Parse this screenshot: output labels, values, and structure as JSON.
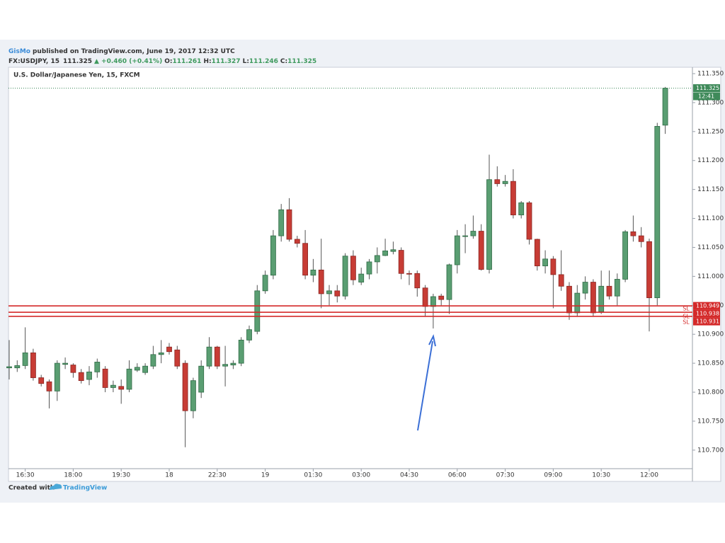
{
  "chart_data": {
    "type": "candlestick",
    "publisher": "GisMo",
    "published": "published on TradingView.com, June 19, 2017 12:32 UTC",
    "symbol": "FX:USDJPY, 15",
    "change": "▲ +0.460 (+0.41%)",
    "ohlc_labels": [
      "O:",
      "H:",
      "L:",
      "C:"
    ],
    "title": "U.S. Dollar/Japanese Yen, 15, FXCM",
    "footer": "Created with",
    "brand": "TradingView",
    "countdown": "12:41",
    "up_color": "#5a9e72",
    "down_color": "#c73c35",
    "categories": [
      null,
      null,
      "16:30",
      null,
      null,
      null,
      null,
      null,
      "18:00",
      null,
      null,
      null,
      null,
      null,
      "19:30",
      null,
      null,
      null,
      null,
      null,
      "18",
      null,
      null,
      null,
      null,
      null,
      "22:30",
      null,
      null,
      null,
      null,
      null,
      "19",
      null,
      null,
      null,
      null,
      null,
      "01:30",
      null,
      null,
      null,
      null,
      null,
      "03:00",
      null,
      null,
      null,
      null,
      null,
      "04:30",
      null,
      null,
      null,
      null,
      null,
      "06:00",
      null,
      null,
      null,
      null,
      null,
      "07:30",
      null,
      null,
      null,
      null,
      null,
      "09:00",
      null,
      null,
      null,
      null,
      null,
      "10:30",
      null,
      null,
      null,
      null,
      null,
      "12:00",
      null,
      null
    ],
    "open": [
      110.842,
      110.842,
      110.846,
      110.868,
      110.825,
      110.818,
      110.802,
      110.848,
      110.847,
      110.834,
      110.822,
      110.835,
      110.84,
      110.808,
      110.81,
      110.805,
      110.838,
      110.834,
      110.845,
      110.865,
      110.878,
      110.873,
      110.85,
      110.768,
      110.8,
      110.845,
      110.878,
      110.845,
      110.847,
      110.85,
      110.89,
      110.905,
      110.975,
      111.002,
      111.07,
      111.115,
      111.064,
      111.057,
      111.002,
      111.011,
      110.97,
      110.975,
      110.966,
      111.035,
      110.99,
      111.004,
      111.025,
      111.036,
      111.043,
      111.045,
      111.005,
      111.005,
      110.98,
      110.948,
      110.966,
      110.96,
      111.02,
      111.069,
      111.07,
      111.078,
      111.012,
      111.167,
      111.16,
      111.164,
      111.106,
      111.127,
      111.064,
      111.018,
      111.03,
      111.003,
      110.983,
      110.937,
      110.971,
      110.99,
      110.939,
      110.983,
      110.966,
      110.995,
      111.077,
      111.07,
      111.06,
      110.963,
      111.261
    ],
    "high": [
      110.89,
      110.855,
      110.912,
      110.875,
      110.83,
      110.822,
      110.855,
      110.86,
      110.85,
      110.84,
      110.845,
      110.858,
      110.845,
      110.82,
      110.822,
      110.855,
      110.85,
      110.85,
      110.88,
      110.89,
      110.885,
      110.88,
      110.855,
      110.825,
      110.855,
      110.895,
      110.88,
      110.88,
      110.855,
      110.895,
      110.915,
      110.985,
      111.01,
      111.08,
      111.125,
      111.135,
      111.07,
      111.08,
      111.03,
      111.065,
      110.985,
      110.985,
      111.04,
      111.045,
      111.015,
      111.03,
      111.05,
      111.065,
      111.06,
      111.05,
      111.01,
      111.01,
      110.985,
      110.97,
      110.97,
      111.022,
      111.08,
      111.09,
      111.105,
      111.09,
      111.21,
      111.19,
      111.175,
      111.185,
      111.13,
      111.13,
      111.065,
      111.045,
      111.035,
      111.045,
      110.99,
      110.985,
      111.0,
      110.995,
      111.01,
      111.01,
      111.005,
      111.08,
      111.105,
      111.085,
      111.065,
      111.265,
      111.327
    ],
    "low": [
      110.822,
      110.835,
      110.84,
      110.82,
      110.81,
      110.772,
      110.785,
      110.84,
      110.825,
      110.815,
      110.812,
      110.825,
      110.8,
      110.8,
      110.78,
      110.8,
      110.835,
      110.83,
      110.84,
      110.85,
      110.865,
      110.84,
      110.705,
      110.755,
      110.79,
      110.84,
      110.84,
      110.81,
      110.84,
      110.845,
      110.885,
      110.9,
      110.97,
      110.995,
      111.06,
      111.06,
      111.05,
      110.995,
      110.99,
      110.945,
      110.95,
      110.955,
      110.96,
      110.985,
      110.985,
      110.995,
      111.005,
      111.035,
      111.038,
      110.995,
      110.985,
      110.965,
      110.93,
      110.91,
      110.95,
      110.935,
      111.005,
      111.04,
      111.065,
      111.01,
      111.005,
      111.155,
      111.155,
      111.1,
      111.1,
      111.055,
      111.01,
      111.005,
      110.945,
      110.975,
      110.925,
      110.93,
      110.96,
      110.93,
      110.935,
      110.96,
      110.95,
      110.99,
      111.06,
      111.05,
      110.905,
      110.95,
      111.246
    ],
    "close": [
      110.844,
      110.846,
      110.868,
      110.825,
      110.815,
      110.802,
      110.85,
      110.85,
      110.834,
      110.82,
      110.835,
      110.852,
      110.808,
      110.812,
      110.805,
      110.84,
      110.843,
      110.845,
      110.865,
      110.868,
      110.87,
      110.845,
      110.768,
      110.82,
      110.845,
      110.878,
      110.845,
      110.848,
      110.85,
      110.89,
      110.908,
      110.975,
      111.002,
      111.07,
      111.115,
      111.064,
      111.057,
      111.002,
      111.011,
      110.97,
      110.975,
      110.966,
      111.035,
      110.994,
      111.004,
      111.025,
      111.036,
      111.044,
      111.046,
      111.005,
      111.004,
      110.98,
      110.948,
      110.965,
      110.96,
      111.02,
      111.07,
      111.07,
      111.078,
      111.012,
      111.167,
      111.16,
      111.164,
      111.106,
      111.127,
      111.064,
      111.018,
      111.03,
      111.003,
      110.983,
      110.937,
      110.971,
      110.99,
      110.937,
      110.983,
      110.966,
      110.995,
      111.077,
      111.07,
      111.06,
      110.963,
      111.259,
      111.325
    ],
    "ylim": [
      110.668,
      111.361
    ],
    "yticks": [
      {
        "value": 110.7,
        "label": "110.700"
      },
      {
        "value": 110.75,
        "label": "110.750"
      },
      {
        "value": 110.8,
        "label": "110.800"
      },
      {
        "value": 110.85,
        "label": "110.850"
      },
      {
        "value": 110.9,
        "label": "110.900"
      },
      {
        "value": 110.95,
        "label": "110.950"
      },
      {
        "value": 111.0,
        "label": "111.000"
      },
      {
        "value": 111.05,
        "label": "111.050"
      },
      {
        "value": 111.1,
        "label": "111.100"
      },
      {
        "value": 111.15,
        "label": "111.150"
      },
      {
        "value": 111.2,
        "label": "111.200"
      },
      {
        "value": 111.25,
        "label": "111.250"
      },
      {
        "value": 111.3,
        "label": "111.300"
      },
      {
        "value": 111.35,
        "label": "111.350"
      }
    ],
    "levels": [
      {
        "value": 110.949,
        "tag": "SL"
      },
      {
        "value": 110.938,
        "tag": "SL"
      },
      {
        "value": 110.931,
        "tag": "SL"
      }
    ],
    "level_color": "#d42a2a"
  }
}
